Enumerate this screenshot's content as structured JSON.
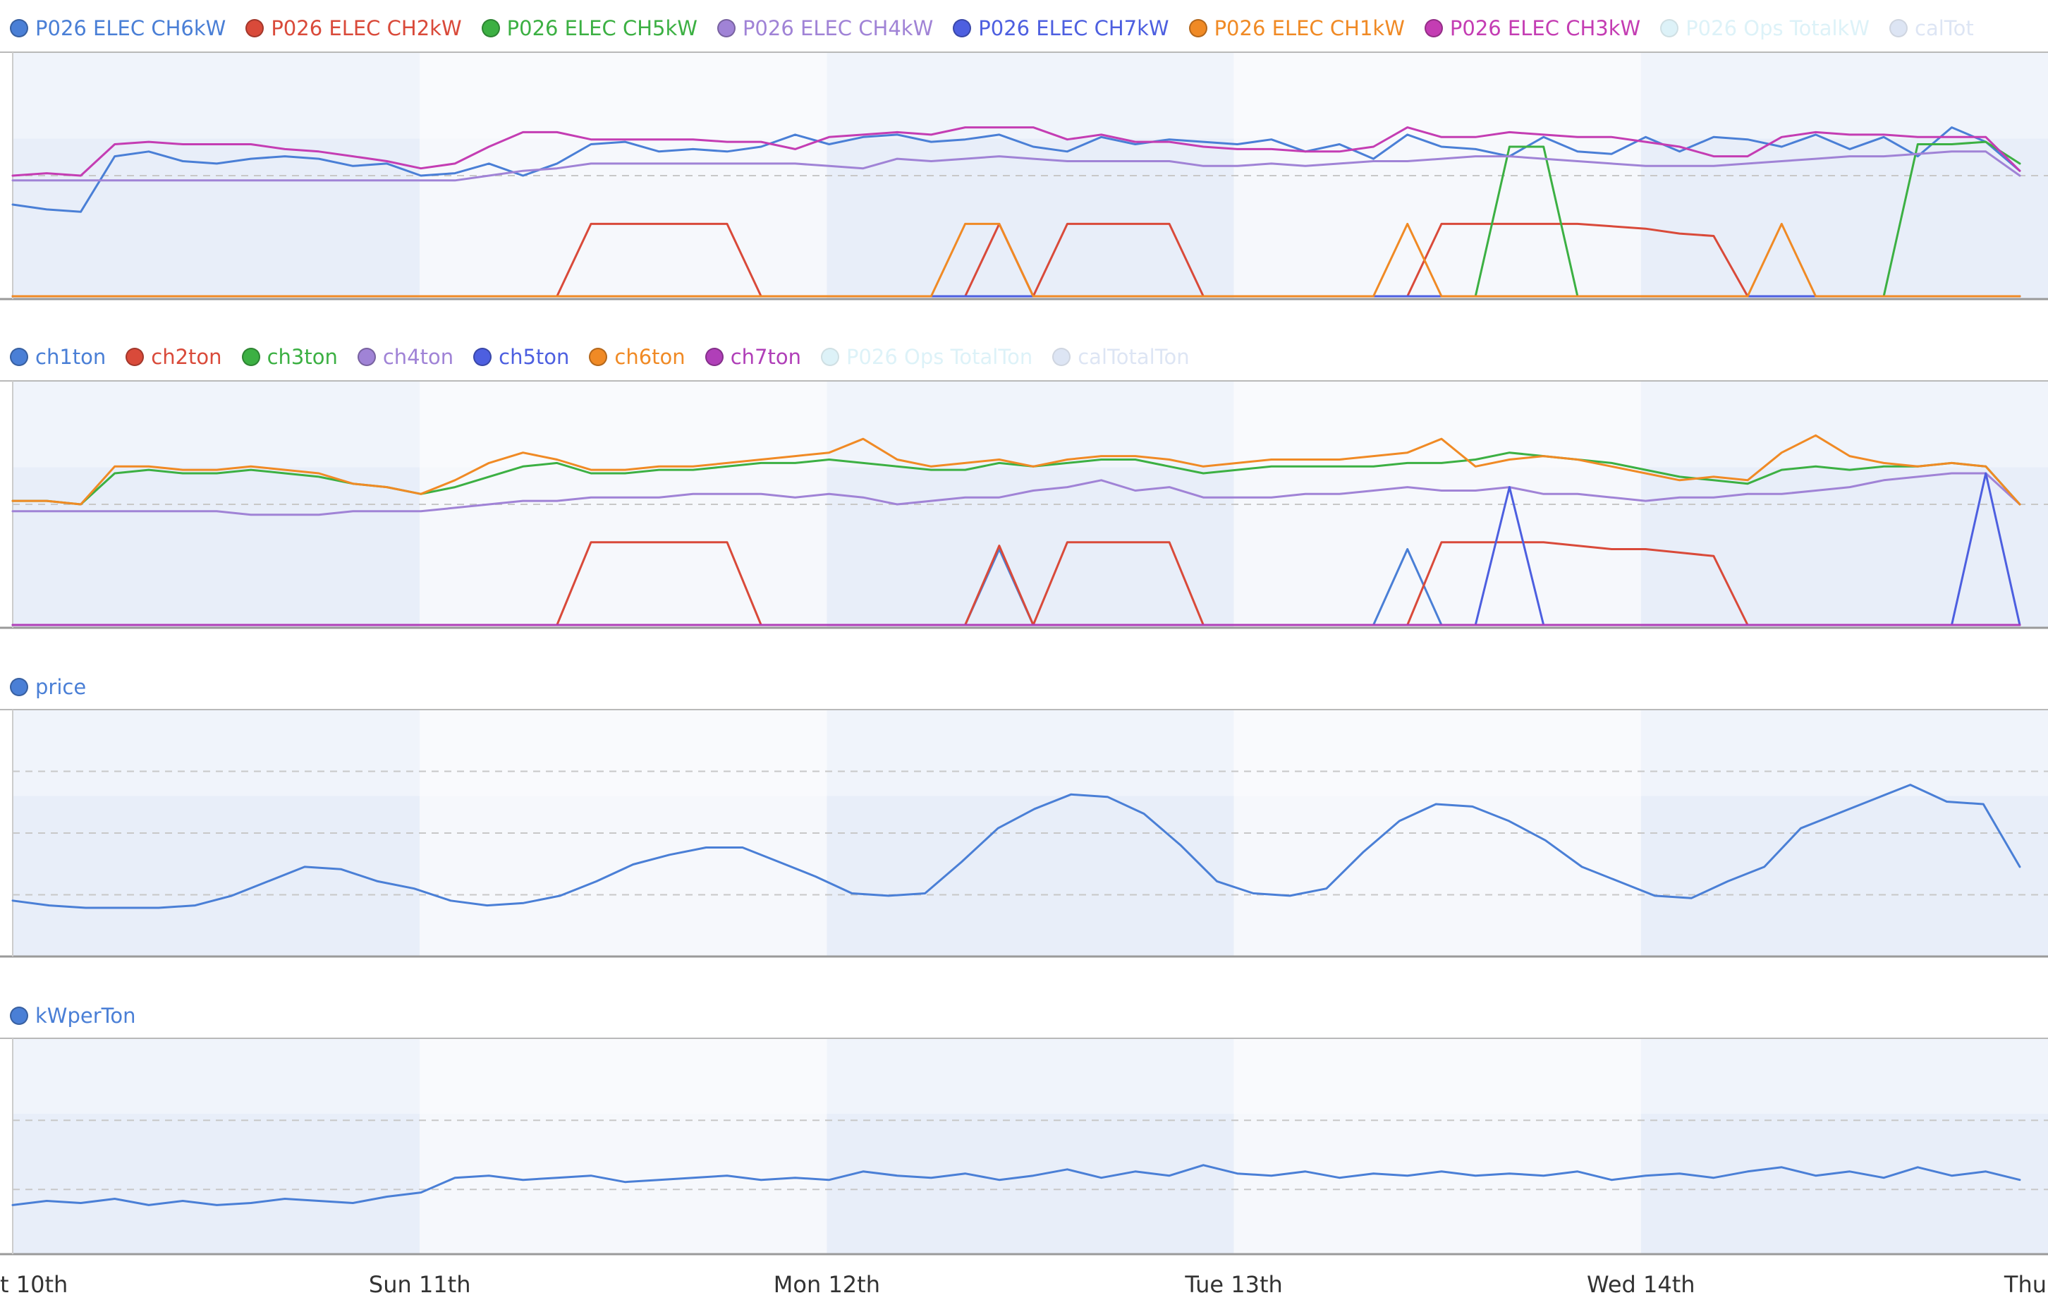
{
  "chart_data": [
    {
      "type": "line",
      "id": "elec",
      "series": [
        {
          "name": "P026 ELEC CH6kW",
          "color": "#4a7fd6",
          "visible": true,
          "values": [
            38,
            36,
            35,
            58,
            60,
            56,
            55,
            57,
            58,
            57,
            54,
            55,
            50,
            51,
            55,
            50,
            55,
            63,
            64,
            60,
            61,
            60,
            62,
            67,
            63,
            66,
            67,
            64,
            65,
            67,
            62,
            60,
            66,
            63,
            65,
            64,
            63,
            65,
            60,
            63,
            57,
            67,
            62,
            61,
            58,
            66,
            60,
            59,
            66,
            60,
            66,
            65,
            62,
            67,
            61,
            66,
            58,
            70,
            64,
            52
          ]
        },
        {
          "name": "P026 ELEC CH2kW",
          "color": "#d94a3a",
          "visible": true,
          "values": [
            0,
            0,
            0,
            0,
            0,
            0,
            0,
            0,
            0,
            0,
            0,
            0,
            0,
            0,
            0,
            0,
            0,
            30,
            30,
            30,
            30,
            30,
            0,
            0,
            0,
            0,
            0,
            0,
            0,
            30,
            0,
            30,
            30,
            30,
            30,
            0,
            0,
            0,
            0,
            0,
            0,
            0,
            30,
            30,
            30,
            30,
            30,
            29,
            28,
            26,
            25,
            0,
            0,
            0,
            0,
            0,
            0,
            0,
            0,
            0
          ]
        },
        {
          "name": "P026 ELEC CH5kW",
          "color": "#3cb043",
          "visible": true,
          "values": [
            0,
            0,
            0,
            0,
            0,
            0,
            0,
            0,
            0,
            0,
            0,
            0,
            0,
            0,
            0,
            0,
            0,
            0,
            0,
            0,
            0,
            0,
            0,
            0,
            0,
            0,
            0,
            0,
            0,
            0,
            0,
            0,
            0,
            0,
            0,
            0,
            0,
            0,
            0,
            0,
            0,
            0,
            0,
            0,
            62,
            62,
            0,
            0,
            0,
            0,
            0,
            0,
            0,
            0,
            0,
            0,
            63,
            63,
            64,
            55
          ]
        },
        {
          "name": "P026 ELEC CH4kW",
          "color": "#a083d6",
          "visible": true,
          "values": [
            48,
            48,
            48,
            48,
            48,
            48,
            48,
            48,
            48,
            48,
            48,
            48,
            48,
            48,
            50,
            52,
            53,
            55,
            55,
            55,
            55,
            55,
            55,
            55,
            54,
            53,
            57,
            56,
            57,
            58,
            57,
            56,
            56,
            56,
            56,
            54,
            54,
            55,
            54,
            55,
            56,
            56,
            57,
            58,
            58,
            57,
            56,
            55,
            54,
            54,
            54,
            55,
            56,
            57,
            58,
            58,
            59,
            60,
            60,
            50
          ]
        },
        {
          "name": "P026 ELEC CH7kW",
          "color": "#4d5fe0",
          "visible": true,
          "values": [
            0,
            0,
            0,
            0,
            0,
            0,
            0,
            0,
            0,
            0,
            0,
            0,
            0,
            0,
            0,
            0,
            0,
            0,
            0,
            0,
            0,
            0,
            0,
            0,
            0,
            0,
            0,
            0,
            0,
            0,
            0,
            0,
            0,
            0,
            0,
            0,
            0,
            0,
            0,
            0,
            0,
            0,
            0,
            0,
            0,
            0,
            0,
            0,
            0,
            0,
            0,
            0,
            0,
            0,
            0,
            0,
            0,
            0,
            0,
            0
          ]
        },
        {
          "name": "P026 ELEC CH1kW",
          "color": "#f08a25",
          "visible": true,
          "values": [
            0,
            0,
            0,
            0,
            0,
            0,
            0,
            0,
            0,
            0,
            0,
            0,
            0,
            0,
            0,
            0,
            0,
            0,
            0,
            0,
            0,
            0,
            0,
            0,
            0,
            0,
            0,
            0,
            30,
            30,
            0,
            0,
            0,
            0,
            0,
            0,
            0,
            0,
            0,
            0,
            0,
            30,
            0,
            0,
            0,
            0,
            0,
            0,
            0,
            0,
            0,
            0,
            30,
            0,
            0,
            0,
            0,
            0,
            0,
            0
          ]
        },
        {
          "name": "P026 ELEC CH3kW",
          "color": "#c43db3",
          "visible": true,
          "values": [
            50,
            51,
            50,
            63,
            64,
            63,
            63,
            63,
            61,
            60,
            58,
            56,
            53,
            55,
            62,
            68,
            68,
            65,
            65,
            65,
            65,
            64,
            64,
            61,
            66,
            67,
            68,
            67,
            70,
            70,
            70,
            65,
            67,
            64,
            64,
            62,
            61,
            61,
            60,
            60,
            62,
            70,
            66,
            66,
            68,
            67,
            66,
            66,
            64,
            62,
            58,
            58,
            66,
            68,
            67,
            67,
            66,
            66,
            66,
            52
          ]
        },
        {
          "name": "P026 Ops TotalkW",
          "color": "#9fdcec",
          "visible": false,
          "values": []
        },
        {
          "name": "calTot",
          "color": "#9fb7e0",
          "visible": false,
          "values": []
        }
      ],
      "ylim": [
        0,
        100
      ]
    },
    {
      "type": "line",
      "id": "ton",
      "series": [
        {
          "name": "ch1ton",
          "color": "#4a7fd6",
          "visible": true,
          "values": [
            0,
            0,
            0,
            0,
            0,
            0,
            0,
            0,
            0,
            0,
            0,
            0,
            0,
            0,
            0,
            0,
            0,
            0,
            0,
            0,
            0,
            0,
            0,
            0,
            0,
            0,
            0,
            0,
            0,
            22,
            0,
            0,
            0,
            0,
            0,
            0,
            0,
            0,
            0,
            0,
            0,
            22,
            0,
            0,
            0,
            0,
            0,
            0,
            0,
            0,
            0,
            0,
            0,
            0,
            0,
            0,
            0,
            0,
            0,
            0
          ]
        },
        {
          "name": "ch2ton",
          "color": "#d94a3a",
          "visible": true,
          "values": [
            0,
            0,
            0,
            0,
            0,
            0,
            0,
            0,
            0,
            0,
            0,
            0,
            0,
            0,
            0,
            0,
            0,
            24,
            24,
            24,
            24,
            24,
            0,
            0,
            0,
            0,
            0,
            0,
            0,
            23,
            0,
            24,
            24,
            24,
            24,
            0,
            0,
            0,
            0,
            0,
            0,
            0,
            24,
            24,
            24,
            24,
            23,
            22,
            22,
            21,
            20,
            0,
            0,
            0,
            0,
            0,
            0,
            0,
            0,
            0
          ]
        },
        {
          "name": "ch3ton",
          "color": "#3cb043",
          "visible": true,
          "values": [
            36,
            36,
            35,
            44,
            45,
            44,
            44,
            45,
            44,
            43,
            41,
            40,
            38,
            40,
            43,
            46,
            47,
            44,
            44,
            45,
            45,
            46,
            47,
            47,
            48,
            47,
            46,
            45,
            45,
            47,
            46,
            47,
            48,
            48,
            46,
            44,
            45,
            46,
            46,
            46,
            46,
            47,
            47,
            48,
            50,
            49,
            48,
            47,
            45,
            43,
            42,
            41,
            45,
            46,
            45,
            46,
            46,
            47,
            46,
            35
          ]
        },
        {
          "name": "ch4ton",
          "color": "#a083d6",
          "visible": true,
          "values": [
            33,
            33,
            33,
            33,
            33,
            33,
            33,
            32,
            32,
            32,
            33,
            33,
            33,
            34,
            35,
            36,
            36,
            37,
            37,
            37,
            38,
            38,
            38,
            37,
            38,
            37,
            35,
            36,
            37,
            37,
            39,
            40,
            42,
            39,
            40,
            37,
            37,
            37,
            38,
            38,
            39,
            40,
            39,
            39,
            40,
            38,
            38,
            37,
            36,
            37,
            37,
            38,
            38,
            39,
            40,
            42,
            43,
            44,
            44,
            35
          ]
        },
        {
          "name": "ch5ton",
          "color": "#4d5fe0",
          "visible": true,
          "values": [
            0,
            0,
            0,
            0,
            0,
            0,
            0,
            0,
            0,
            0,
            0,
            0,
            0,
            0,
            0,
            0,
            0,
            0,
            0,
            0,
            0,
            0,
            0,
            0,
            0,
            0,
            0,
            0,
            0,
            0,
            0,
            0,
            0,
            0,
            0,
            0,
            0,
            0,
            0,
            0,
            0,
            0,
            0,
            0,
            40,
            0,
            0,
            0,
            0,
            0,
            0,
            0,
            0,
            0,
            0,
            0,
            0,
            0,
            44,
            0
          ]
        },
        {
          "name": "ch6ton",
          "color": "#f08a25",
          "visible": true,
          "values": [
            36,
            36,
            35,
            46,
            46,
            45,
            45,
            46,
            45,
            44,
            41,
            40,
            38,
            42,
            47,
            50,
            48,
            45,
            45,
            46,
            46,
            47,
            48,
            49,
            50,
            54,
            48,
            46,
            47,
            48,
            46,
            48,
            49,
            49,
            48,
            46,
            47,
            48,
            48,
            48,
            49,
            50,
            54,
            46,
            48,
            49,
            48,
            46,
            44,
            42,
            43,
            42,
            50,
            55,
            49,
            47,
            46,
            47,
            46,
            35
          ]
        },
        {
          "name": "ch7ton",
          "color": "#b03fb8",
          "visible": true,
          "values": [
            0,
            0,
            0,
            0,
            0,
            0,
            0,
            0,
            0,
            0,
            0,
            0,
            0,
            0,
            0,
            0,
            0,
            0,
            0,
            0,
            0,
            0,
            0,
            0,
            0,
            0,
            0,
            0,
            0,
            0,
            0,
            0,
            0,
            0,
            0,
            0,
            0,
            0,
            0,
            0,
            0,
            0,
            0,
            0,
            0,
            0,
            0,
            0,
            0,
            0,
            0,
            0,
            0,
            0,
            0,
            0,
            0,
            0,
            0,
            0
          ]
        },
        {
          "name": "P026 Ops TotalTon",
          "color": "#9fdcec",
          "visible": false,
          "values": []
        },
        {
          "name": "calTotalTon",
          "color": "#9fb7e0",
          "visible": false,
          "values": []
        }
      ],
      "ylim": [
        0,
        70
      ]
    },
    {
      "type": "line",
      "id": "price",
      "series": [
        {
          "name": "price",
          "color": "#4a7fd6",
          "visible": true,
          "values": [
            22,
            20,
            19,
            19,
            19,
            20,
            24,
            30,
            36,
            35,
            30,
            27,
            22,
            20,
            21,
            24,
            30,
            37,
            41,
            44,
            44,
            38,
            32,
            25,
            24,
            25,
            38,
            52,
            60,
            66,
            65,
            58,
            45,
            30,
            25,
            24,
            27,
            42,
            55,
            62,
            61,
            55,
            47,
            36,
            30,
            24,
            23,
            30,
            36,
            52,
            58,
            64,
            70,
            63,
            62,
            36
          ]
        }
      ],
      "ylim": [
        0,
        100
      ]
    },
    {
      "type": "line",
      "id": "kwperton",
      "series": [
        {
          "name": "kWperTon",
          "color": "#4a7fd6",
          "visible": true,
          "values": [
            22,
            24,
            23,
            25,
            22,
            24,
            22,
            23,
            25,
            24,
            23,
            26,
            28,
            35,
            36,
            34,
            35,
            36,
            33,
            34,
            35,
            36,
            34,
            35,
            34,
            38,
            36,
            35,
            37,
            34,
            36,
            39,
            35,
            38,
            36,
            41,
            37,
            36,
            38,
            35,
            37,
            36,
            38,
            36,
            37,
            36,
            38,
            34,
            36,
            37,
            35,
            38,
            40,
            36,
            38,
            35,
            40,
            36,
            38,
            34
          ]
        }
      ],
      "ylim": [
        0,
        100
      ]
    }
  ],
  "x_axis": {
    "tick_labels": [
      "t 10th",
      "Sun 11th",
      "Mon 12th",
      "Tue 13th",
      "Wed 14th",
      "Thu"
    ]
  }
}
